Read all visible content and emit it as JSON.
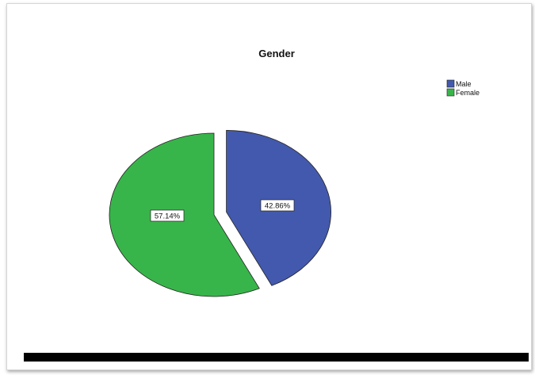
{
  "chart_data": {
    "type": "pie",
    "title": "Gender",
    "categories": [
      "Male",
      "Female"
    ],
    "values": [
      42.86,
      57.14
    ],
    "labels": [
      "42.86%",
      "57.14%"
    ],
    "colors": [
      "#4359ad",
      "#38b54a"
    ],
    "exploded": [
      "Male"
    ],
    "legend": {
      "entries": [
        "Male",
        "Female"
      ],
      "placement": "top-right"
    }
  }
}
